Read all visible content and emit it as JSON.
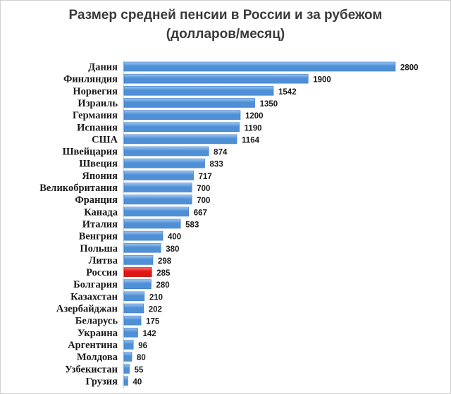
{
  "chart_data": {
    "type": "bar",
    "orientation": "horizontal",
    "title": "Размер средней пенсии в России и за рубежом",
    "subtitle": "(долларов/месяц)",
    "categories": [
      "Дания",
      "Финляндия",
      "Норвегия",
      "Израиль",
      "Германия",
      "Испания",
      "США",
      "Швейцария",
      "Швеция",
      "Япония",
      "Великобритания",
      "Франция",
      "Канада",
      "Италия",
      "Венгрия",
      "Польша",
      "Литва",
      "Россия",
      "Болгария",
      "Казахстан",
      "Азербайджан",
      "Беларусь",
      "Украина",
      "Аргентина",
      "Молдова",
      "Узбекистан",
      "Грузия"
    ],
    "values": [
      2800,
      1900,
      1542,
      1350,
      1200,
      1190,
      1164,
      874,
      833,
      717,
      700,
      700,
      667,
      583,
      400,
      380,
      298,
      285,
      280,
      210,
      202,
      175,
      142,
      96,
      80,
      55,
      40
    ],
    "highlight": "Россия",
    "colors": {
      "bar": "#4f8fd6",
      "bar_light": "#9cc6f2",
      "highlight": "#e01515",
      "highlight_light": "#ff6a6a"
    },
    "xlim": [
      0,
      2800
    ],
    "grid": false,
    "legend": false
  }
}
